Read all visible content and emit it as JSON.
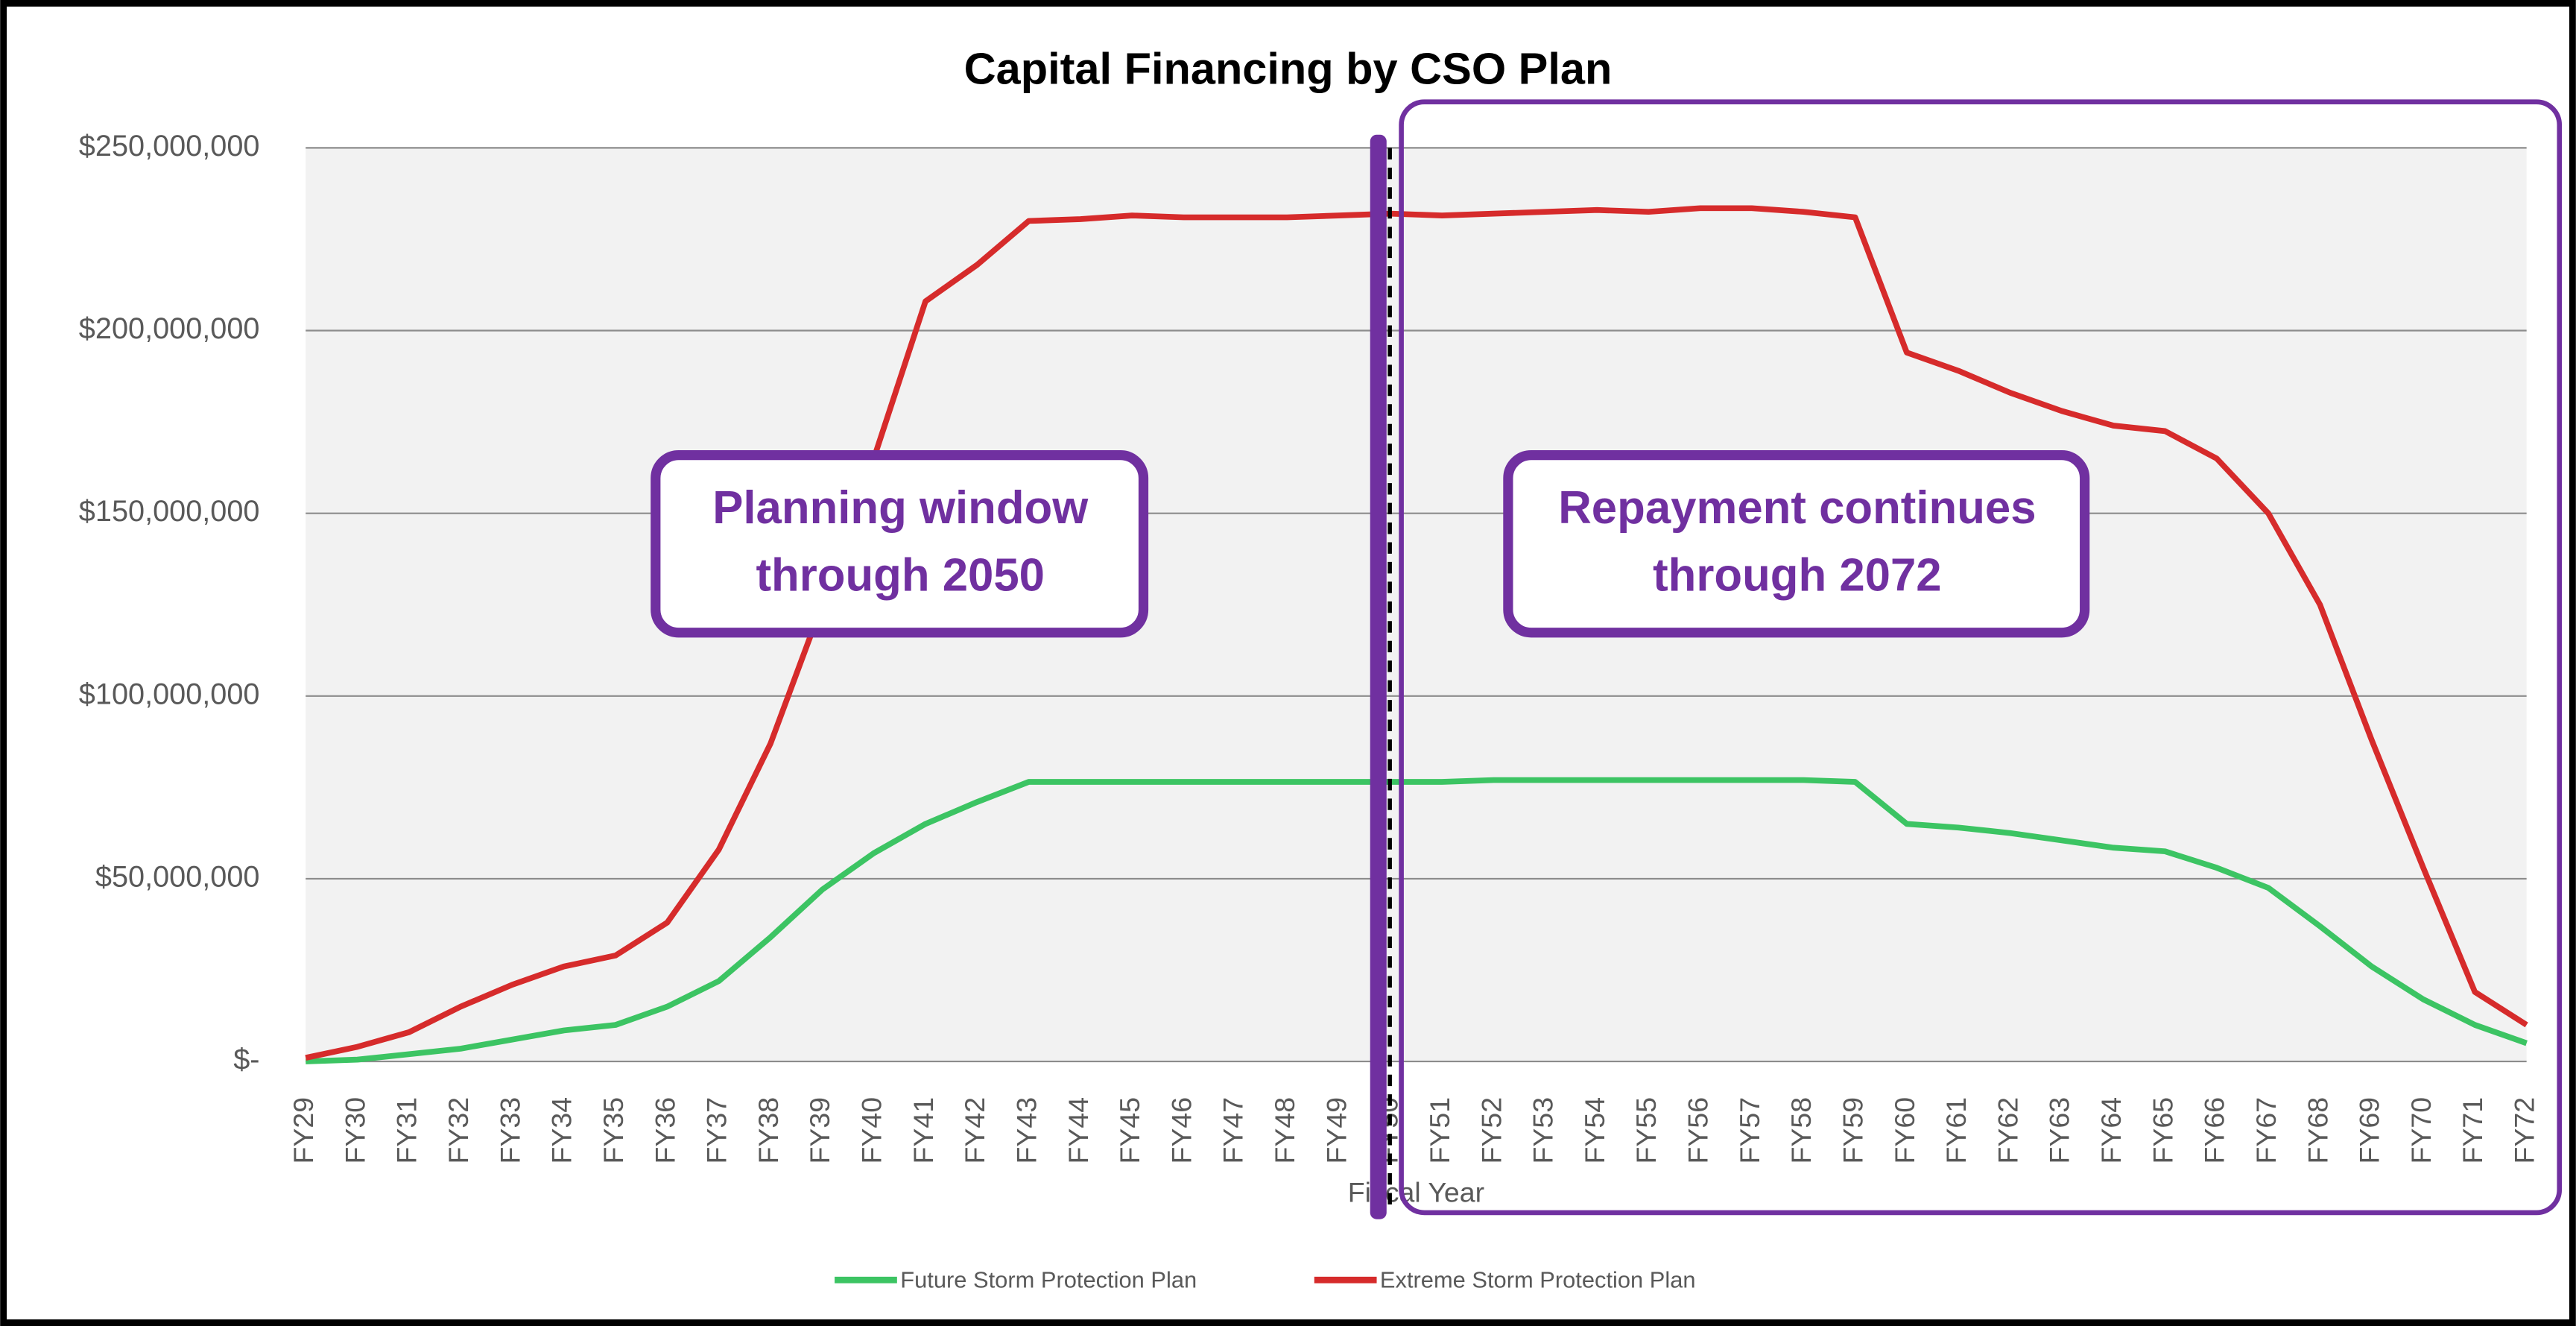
{
  "chart_data": {
    "type": "line",
    "title": "Capital Financing by CSO Plan",
    "x_label": "Fiscal Year",
    "categories": [
      "FY29",
      "FY30",
      "FY31",
      "FY32",
      "FY33",
      "FY34",
      "FY35",
      "FY36",
      "FY37",
      "FY38",
      "FY39",
      "FY40",
      "FY41",
      "FY42",
      "FY43",
      "FY44",
      "FY45",
      "FY46",
      "FY47",
      "FY48",
      "FY49",
      "FY50",
      "FY51",
      "FY52",
      "FY53",
      "FY54",
      "FY55",
      "FY56",
      "FY57",
      "FY58",
      "FY59",
      "FY60",
      "FY61",
      "FY62",
      "FY63",
      "FY64",
      "FY65",
      "FY66",
      "FY67",
      "FY68",
      "FY69",
      "FY70",
      "FY71",
      "FY72"
    ],
    "series": [
      {
        "name": "Future Storm Protection Plan",
        "color": "#3cc463",
        "values": [
          0,
          500000,
          2000000,
          3500000,
          6000000,
          8500000,
          10000000,
          15000000,
          22000000,
          34000000,
          47000000,
          57000000,
          65000000,
          71000000,
          76500000,
          76500000,
          76500000,
          76500000,
          76500000,
          76500000,
          76500000,
          76500000,
          76500000,
          77000000,
          77000000,
          77000000,
          77000000,
          77000000,
          77000000,
          77000000,
          76500000,
          65000000,
          64000000,
          62500000,
          60500000,
          58500000,
          57500000,
          53000000,
          47500000,
          37000000,
          26000000,
          17000000,
          10000000,
          5000000
        ]
      },
      {
        "name": "Extreme Storm Protection Plan",
        "color": "#d62b2b",
        "values": [
          1000000,
          4000000,
          8000000,
          15000000,
          21000000,
          26000000,
          29000000,
          38000000,
          58000000,
          87000000,
          125000000,
          165000000,
          208000000,
          218000000,
          230000000,
          230500000,
          231500000,
          231000000,
          231000000,
          231000000,
          231500000,
          232000000,
          231500000,
          232000000,
          232500000,
          233000000,
          232500000,
          233500000,
          233500000,
          232500000,
          231000000,
          194000000,
          189000000,
          183000000,
          178000000,
          174000000,
          172500000,
          165000000,
          150000000,
          125000000,
          88000000,
          53000000,
          19000000,
          10000000
        ]
      }
    ],
    "ylim": [
      0,
      250000000
    ],
    "yticks": [
      {
        "value": 0,
        "label": "$-"
      },
      {
        "value": 50000000,
        "label": "$50,000,000"
      },
      {
        "value": 100000000,
        "label": "$100,000,000"
      },
      {
        "value": 150000000,
        "label": "$150,000,000"
      },
      {
        "value": 200000000,
        "label": "$200,000,000"
      },
      {
        "value": 250000000,
        "label": "$250,000,000"
      }
    ],
    "grid": true,
    "legend": "bottom",
    "annotations": [
      {
        "lines": [
          "Planning window",
          "through 2050"
        ]
      },
      {
        "lines": [
          "Repayment continues",
          "through 2072"
        ]
      }
    ]
  }
}
